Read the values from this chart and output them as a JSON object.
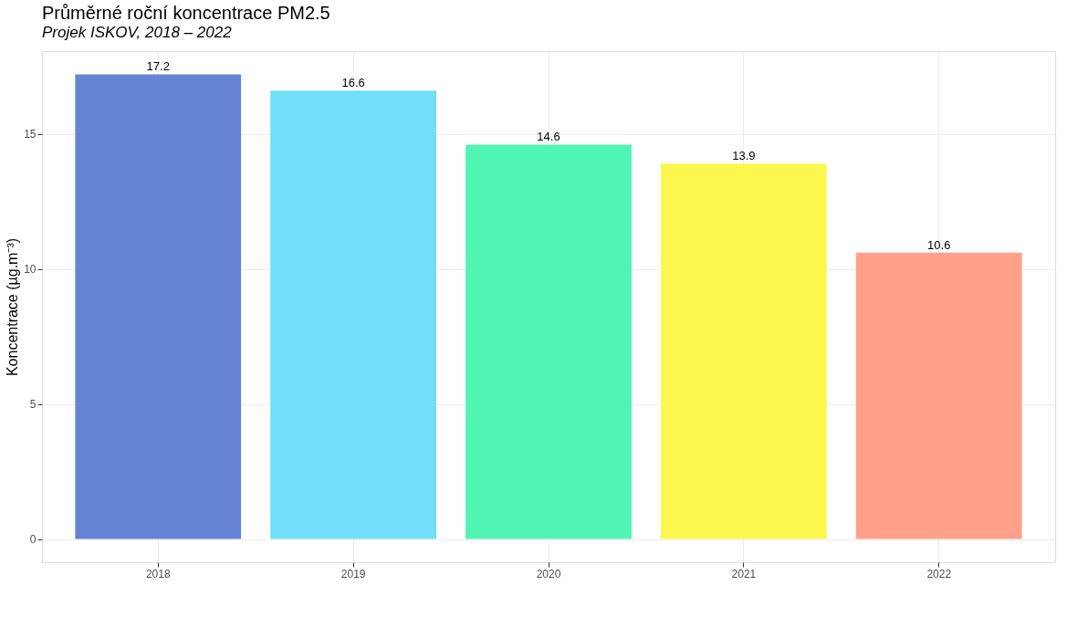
{
  "chart_data": {
    "type": "bar",
    "title": "Průměrné roční koncentrace PM2.5",
    "subtitle": "Projek ISKOV, 2018 – 2022",
    "ylabel": "Koncentrace (µg.m⁻³)",
    "categories": [
      "2018",
      "2019",
      "2020",
      "2021",
      "2022"
    ],
    "values": [
      17.2,
      16.6,
      14.6,
      13.9,
      10.6
    ],
    "colors": [
      "#6585d4",
      "#72dff8",
      "#50f5b4",
      "#fbf74f",
      "#ffa18a"
    ],
    "ylim": [
      -0.86,
      18.06
    ],
    "yticks": [
      0,
      5,
      10,
      15
    ],
    "grid": true,
    "data_labels": true
  }
}
